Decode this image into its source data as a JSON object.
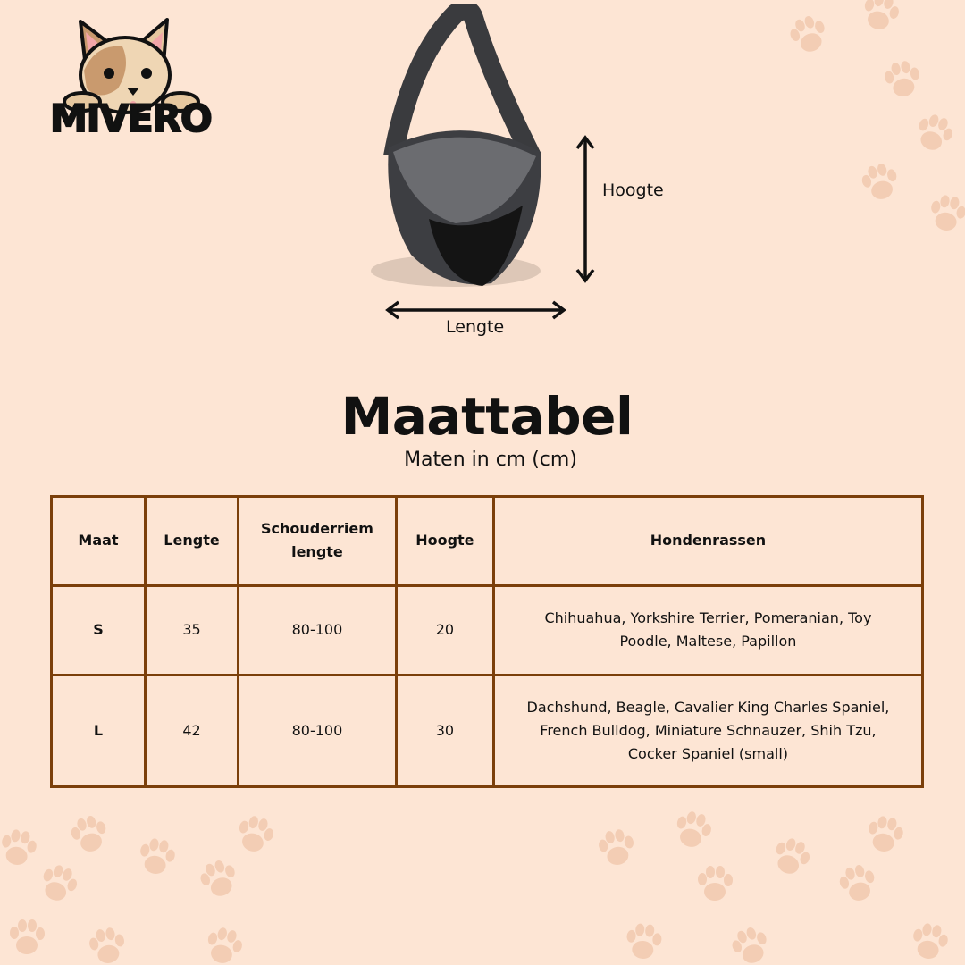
{
  "brand": {
    "logo_text": "MIVERO"
  },
  "diagram": {
    "height_label": "Hoogte",
    "length_label": "Lengte"
  },
  "heading": {
    "title": "Maattabel",
    "subtitle": "Maten in cm (cm)"
  },
  "colors": {
    "background": "#fde5d4",
    "table_border": "#7b3f0a",
    "paw": "#f3cdb4"
  },
  "table": {
    "headers": [
      "Maat",
      "Lengte",
      "Schouderriem lengte",
      "Hoogte",
      "Hondenrassen"
    ],
    "rows": [
      [
        "S",
        "35",
        "80-100",
        "20",
        "Chihuahua, Yorkshire Terrier, Pomeranian, Toy Poodle, Maltese, Papillon"
      ],
      [
        "L",
        "42",
        "80-100",
        "30",
        "Dachshund, Beagle, Cavalier King Charles Spaniel, French Bulldog, Miniature Schnauzer, Shih Tzu, Cocker Spaniel (small)"
      ]
    ]
  }
}
